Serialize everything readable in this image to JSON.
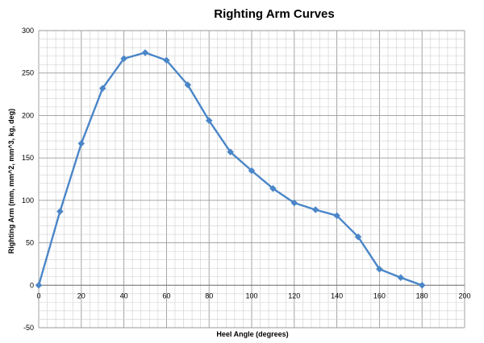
{
  "chart_data": {
    "type": "line",
    "title": "Righting Arm Curves",
    "xlabel": "Heel Angle (degrees)",
    "ylabel": "Righting Arm (mm, mm^2, mm^3, kg, deg)",
    "xlim": [
      0,
      200
    ],
    "ylim": [
      -50,
      300
    ],
    "x_major_ticks": [
      "0",
      "20",
      "40",
      "60",
      "80",
      "100",
      "120",
      "140",
      "160",
      "180",
      "200"
    ],
    "y_major_ticks": [
      "-50",
      "0",
      "50",
      "100",
      "150",
      "200",
      "250",
      "300"
    ],
    "grid": true,
    "legend": "none",
    "series": [
      {
        "color": "#4a86c8",
        "marker": "diamond",
        "x": [
          0,
          10,
          20,
          30,
          40,
          50,
          60,
          70,
          80,
          90,
          100,
          110,
          120,
          130,
          140,
          150,
          160,
          170,
          180
        ],
        "values": [
          0,
          87,
          167,
          232,
          267,
          274,
          265,
          236,
          194,
          157,
          135,
          114,
          97,
          89,
          82,
          57,
          19,
          9,
          0
        ]
      }
    ]
  }
}
